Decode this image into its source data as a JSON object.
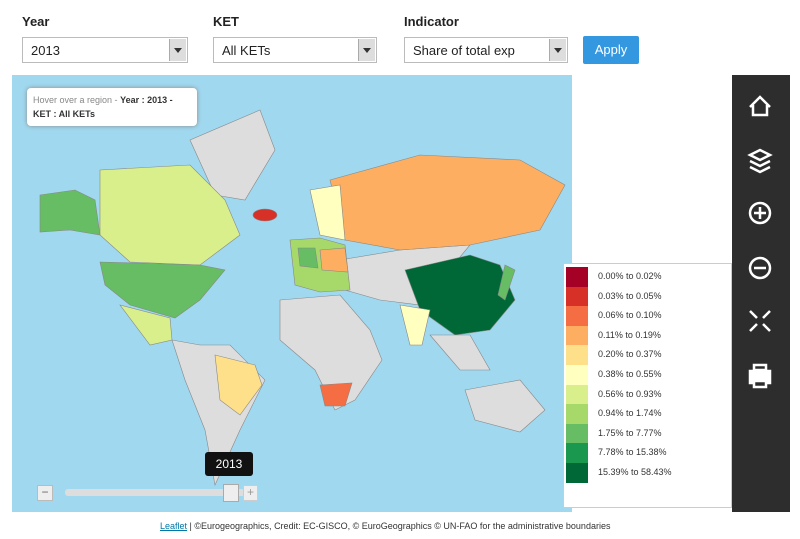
{
  "filters": [
    {
      "label": "Year",
      "value": "2013"
    },
    {
      "label": "KET",
      "value": "All KETs"
    },
    {
      "label": "Indicator",
      "value": "Share of total exp"
    }
  ],
  "apply": "Apply",
  "tooltip": {
    "prefix": "Hover over a region -",
    "detail": "Year : 2013 - KET : All KETs"
  },
  "legend": [
    {
      "label": "0.00% to 0.02%",
      "color": "#a50026"
    },
    {
      "label": "0.03% to 0.05%",
      "color": "#d73027"
    },
    {
      "label": "0.06% to 0.10%",
      "color": "#f46d43"
    },
    {
      "label": "0.11% to 0.19%",
      "color": "#fdae61"
    },
    {
      "label": "0.20% to 0.37%",
      "color": "#fee08b"
    },
    {
      "label": "0.38% to 0.55%",
      "color": "#ffffbf"
    },
    {
      "label": "0.56% to 0.93%",
      "color": "#d9ef8b"
    },
    {
      "label": "0.94% to 1.74%",
      "color": "#a6d96a"
    },
    {
      "label": "1.75% to 7.77%",
      "color": "#66bd63"
    },
    {
      "label": "7.78% to 15.38%",
      "color": "#1a9850"
    },
    {
      "label": "15.39% to 58.43%",
      "color": "#006837"
    }
  ],
  "slider": {
    "label": "2013"
  },
  "attribution": {
    "link": "Leaflet",
    "text": "| ©Eurogeographics, Credit: EC-GISCO, © EuroGeographics © UN-FAO for the administrative boundaries"
  }
}
